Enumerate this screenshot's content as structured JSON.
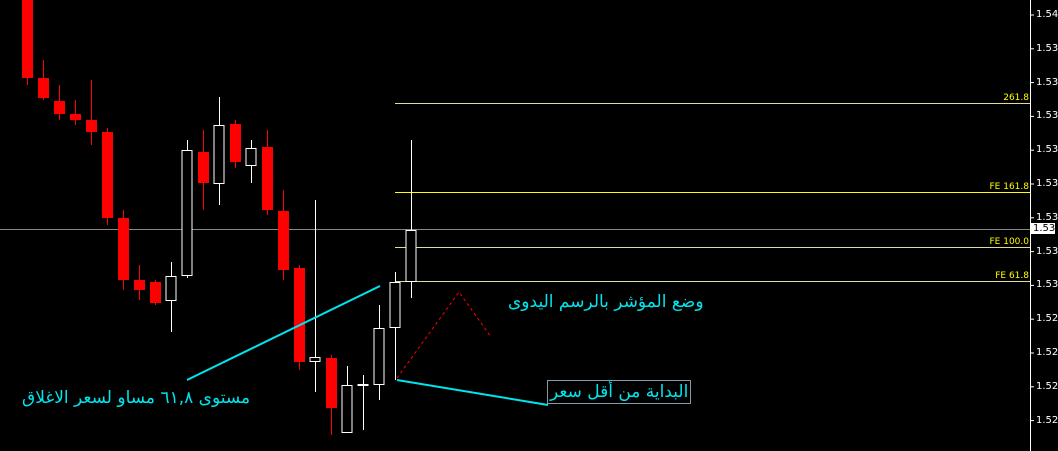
{
  "price_axis": {
    "labels": [
      "1.54",
      "1.53",
      "1.53",
      "1.53",
      "1.53",
      "1.53",
      "1.53",
      "1.53",
      "1.53",
      "1.52",
      "1.52",
      "1.52",
      "1.52"
    ],
    "current_price": "1.53"
  },
  "fib_levels": [
    {
      "label": "261.8",
      "color": "#dddd99"
    },
    {
      "label": "FE 161.8",
      "color": "#ffff00"
    },
    {
      "label": "FE 100.0",
      "color": "#dddd99"
    },
    {
      "label": "FE 61.8",
      "color": "#dddd99"
    }
  ],
  "annotations": {
    "place_indicator": "وضع المؤشر بالرسم اليدوى",
    "level_618": "مستوى ٦١,٨ مساو لسعر الاغلاق",
    "start_lowest": "البداية من أقل سعر"
  },
  "colors": {
    "bull": "#ffffff",
    "bear": "#ff0000",
    "trendline": "#00e5ee",
    "background": "#000000"
  }
}
